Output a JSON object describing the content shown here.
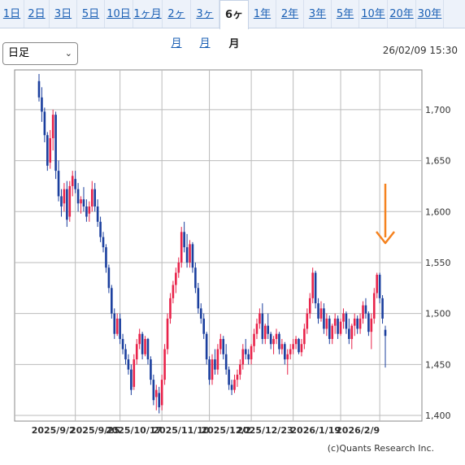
{
  "tabs": [
    "1日",
    "2日",
    "3日",
    "5日",
    "10日",
    "1ヶ月",
    "2ヶ月",
    "3ヶ月",
    "6ヶ月",
    "1年",
    "2年",
    "3年",
    "5年",
    "10年",
    "20年",
    "30年"
  ],
  "active_tab": "6ヶ月",
  "period_select": {
    "value": "日足"
  },
  "timestamp": "26/02/09 15:30",
  "credit": "(c)Quants Research Inc.",
  "colors": {
    "up": "#e8234a",
    "down": "#1b3f9e",
    "arrow": "#f5821f",
    "grid": "#bbbbbb"
  },
  "chart_data": {
    "type": "candlestick",
    "ylim": [
      1400,
      1735
    ],
    "y_ticks": [
      1400,
      1450,
      1500,
      1550,
      1600,
      1650,
      1700
    ],
    "y_tick_labels": [
      "1,400",
      "1,450",
      "1,500",
      "1,550",
      "1,600",
      "1,650",
      "1,700"
    ],
    "x_tick_labels": [
      "2025/9/2",
      "2025/9/25",
      "2025/10/17",
      "2025/11/10",
      "2025/12/2",
      "2025/12/23",
      "2026/1/19",
      "2026/2/9"
    ],
    "x_tick_index": [
      13,
      29,
      44,
      61,
      76,
      91,
      108,
      122
    ],
    "grid": true,
    "annotation": "downward arrow over last candle",
    "ohlc": [
      [
        1728,
        1735,
        1708,
        1712
      ],
      [
        1712,
        1722,
        1688,
        1698
      ],
      [
        1698,
        1702,
        1668,
        1675
      ],
      [
        1675,
        1678,
        1640,
        1645
      ],
      [
        1648,
        1680,
        1642,
        1672
      ],
      [
        1672,
        1700,
        1660,
        1695
      ],
      [
        1695,
        1698,
        1632,
        1640
      ],
      [
        1640,
        1650,
        1610,
        1615
      ],
      [
        1615,
        1622,
        1595,
        1605
      ],
      [
        1608,
        1628,
        1600,
        1622
      ],
      [
        1622,
        1630,
        1585,
        1592
      ],
      [
        1595,
        1630,
        1590,
        1625
      ],
      [
        1625,
        1640,
        1615,
        1635
      ],
      [
        1632,
        1640,
        1618,
        1622
      ],
      [
        1622,
        1628,
        1600,
        1608
      ],
      [
        1608,
        1615,
        1598,
        1612
      ],
      [
        1612,
        1624,
        1600,
        1605
      ],
      [
        1605,
        1612,
        1590,
        1595
      ],
      [
        1598,
        1610,
        1590,
        1605
      ],
      [
        1605,
        1630,
        1600,
        1622
      ],
      [
        1622,
        1628,
        1600,
        1605
      ],
      [
        1605,
        1612,
        1585,
        1590
      ],
      [
        1590,
        1595,
        1570,
        1575
      ],
      [
        1575,
        1580,
        1560,
        1565
      ],
      [
        1565,
        1568,
        1540,
        1545
      ],
      [
        1545,
        1548,
        1520,
        1525
      ],
      [
        1525,
        1528,
        1495,
        1500
      ],
      [
        1500,
        1505,
        1475,
        1480
      ],
      [
        1480,
        1500,
        1478,
        1495
      ],
      [
        1495,
        1500,
        1470,
        1475
      ],
      [
        1475,
        1480,
        1460,
        1465
      ],
      [
        1465,
        1470,
        1450,
        1455
      ],
      [
        1455,
        1460,
        1440,
        1445
      ],
      [
        1445,
        1450,
        1420,
        1425
      ],
      [
        1428,
        1460,
        1425,
        1455
      ],
      [
        1455,
        1475,
        1450,
        1470
      ],
      [
        1470,
        1485,
        1465,
        1480
      ],
      [
        1480,
        1482,
        1455,
        1460
      ],
      [
        1460,
        1478,
        1458,
        1475
      ],
      [
        1475,
        1476,
        1450,
        1455
      ],
      [
        1455,
        1458,
        1430,
        1435
      ],
      [
        1435,
        1440,
        1410,
        1415
      ],
      [
        1418,
        1430,
        1405,
        1425
      ],
      [
        1422,
        1428,
        1402,
        1408
      ],
      [
        1410,
        1440,
        1405,
        1435
      ],
      [
        1435,
        1470,
        1430,
        1465
      ],
      [
        1465,
        1500,
        1460,
        1495
      ],
      [
        1495,
        1520,
        1490,
        1515
      ],
      [
        1515,
        1532,
        1510,
        1528
      ],
      [
        1528,
        1545,
        1520,
        1540
      ],
      [
        1540,
        1555,
        1535,
        1550
      ],
      [
        1550,
        1585,
        1545,
        1580
      ],
      [
        1580,
        1590,
        1560,
        1565
      ],
      [
        1565,
        1578,
        1545,
        1550
      ],
      [
        1550,
        1572,
        1545,
        1568
      ],
      [
        1568,
        1570,
        1540,
        1545
      ],
      [
        1545,
        1550,
        1520,
        1525
      ],
      [
        1525,
        1530,
        1500,
        1505
      ],
      [
        1505,
        1510,
        1490,
        1495
      ],
      [
        1495,
        1500,
        1475,
        1480
      ],
      [
        1480,
        1482,
        1450,
        1455
      ],
      [
        1455,
        1458,
        1430,
        1435
      ],
      [
        1435,
        1460,
        1430,
        1455
      ],
      [
        1455,
        1465,
        1440,
        1445
      ],
      [
        1445,
        1470,
        1440,
        1465
      ],
      [
        1465,
        1480,
        1460,
        1475
      ],
      [
        1475,
        1478,
        1455,
        1460
      ],
      [
        1460,
        1470,
        1440,
        1445
      ],
      [
        1445,
        1448,
        1425,
        1430
      ],
      [
        1430,
        1435,
        1420,
        1425
      ],
      [
        1425,
        1440,
        1422,
        1435
      ],
      [
        1435,
        1445,
        1428,
        1440
      ],
      [
        1440,
        1455,
        1435,
        1450
      ],
      [
        1450,
        1470,
        1445,
        1465
      ],
      [
        1465,
        1475,
        1455,
        1460
      ],
      [
        1460,
        1465,
        1450,
        1455
      ],
      [
        1455,
        1470,
        1450,
        1468
      ],
      [
        1468,
        1485,
        1462,
        1480
      ],
      [
        1480,
        1495,
        1475,
        1490
      ],
      [
        1490,
        1505,
        1485,
        1500
      ],
      [
        1500,
        1510,
        1470,
        1475
      ],
      [
        1475,
        1490,
        1470,
        1488
      ],
      [
        1488,
        1500,
        1475,
        1480
      ],
      [
        1480,
        1482,
        1465,
        1470
      ],
      [
        1470,
        1478,
        1460,
        1475
      ],
      [
        1475,
        1485,
        1470,
        1480
      ],
      [
        1480,
        1482,
        1460,
        1465
      ],
      [
        1465,
        1475,
        1460,
        1470
      ],
      [
        1470,
        1472,
        1450,
        1455
      ],
      [
        1455,
        1465,
        1440,
        1460
      ],
      [
        1460,
        1470,
        1455,
        1465
      ],
      [
        1465,
        1475,
        1460,
        1470
      ],
      [
        1470,
        1478,
        1465,
        1475
      ],
      [
        1475,
        1476,
        1460,
        1462
      ],
      [
        1462,
        1475,
        1458,
        1470
      ],
      [
        1470,
        1490,
        1465,
        1485
      ],
      [
        1485,
        1505,
        1480,
        1500
      ],
      [
        1500,
        1520,
        1495,
        1515
      ],
      [
        1515,
        1545,
        1510,
        1540
      ],
      [
        1540,
        1542,
        1505,
        1510
      ],
      [
        1510,
        1515,
        1490,
        1495
      ],
      [
        1495,
        1512,
        1492,
        1505
      ],
      [
        1505,
        1510,
        1480,
        1485
      ],
      [
        1485,
        1500,
        1478,
        1495
      ],
      [
        1495,
        1498,
        1470,
        1475
      ],
      [
        1475,
        1490,
        1470,
        1488
      ],
      [
        1488,
        1500,
        1480,
        1495
      ],
      [
        1495,
        1498,
        1475,
        1480
      ],
      [
        1480,
        1495,
        1478,
        1492
      ],
      [
        1492,
        1505,
        1485,
        1500
      ],
      [
        1500,
        1502,
        1480,
        1485
      ],
      [
        1485,
        1495,
        1470,
        1475
      ],
      [
        1475,
        1490,
        1465,
        1488
      ],
      [
        1488,
        1500,
        1478,
        1495
      ],
      [
        1495,
        1498,
        1480,
        1485
      ],
      [
        1485,
        1500,
        1480,
        1495
      ],
      [
        1495,
        1512,
        1490,
        1508
      ],
      [
        1508,
        1515,
        1495,
        1500
      ],
      [
        1500,
        1502,
        1478,
        1482
      ],
      [
        1482,
        1500,
        1465,
        1495
      ],
      [
        1495,
        1525,
        1490,
        1520
      ],
      [
        1520,
        1540,
        1515,
        1538
      ],
      [
        1538,
        1540,
        1510,
        1515
      ],
      [
        1515,
        1518,
        1490,
        1495
      ],
      [
        1484,
        1488,
        1447,
        1478
      ]
    ]
  }
}
